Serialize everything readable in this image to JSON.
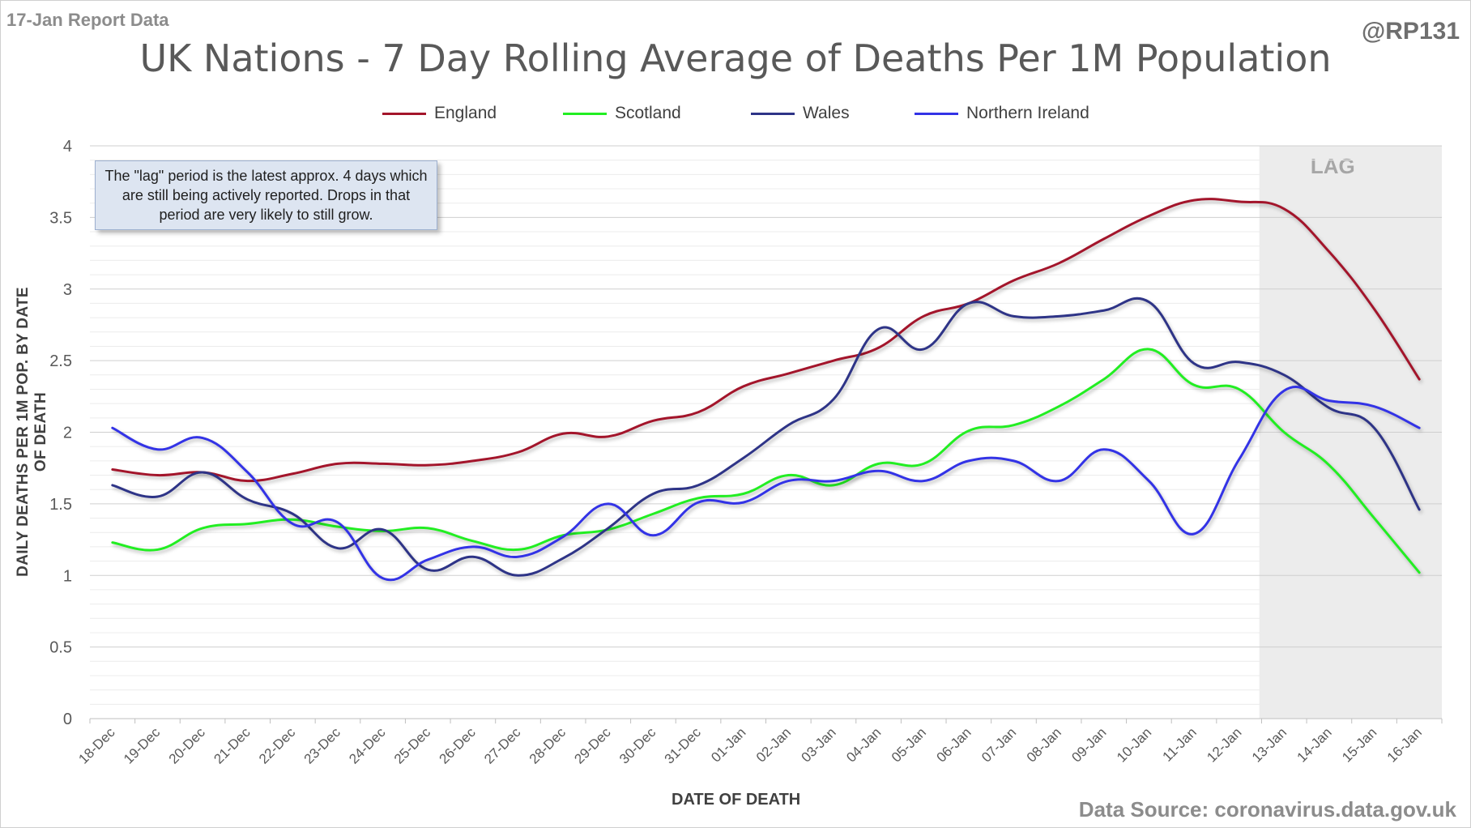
{
  "header": {
    "report_date": "17-Jan Report Data",
    "handle": "@RP131",
    "source": "Data Source: coronavirus.data.gov.uk"
  },
  "annotation": {
    "note": "The \"lag\" period is the latest approx. 4 days which are still being actively reported.  Drops in that period are very likely to still grow.",
    "lag_label": "LAG"
  },
  "chart_data": {
    "type": "line",
    "title": "UK Nations - 7 Day Rolling Average of Deaths Per 1M Population",
    "xlabel": "DATE OF DEATH",
    "ylabel": "DAILY DEATHS PER 1M POP. BY DATE OF DEATH",
    "ylim": [
      0,
      4
    ],
    "yticks": [
      0,
      0.5,
      1,
      1.5,
      2,
      2.5,
      3,
      3.5,
      4
    ],
    "grid": true,
    "legend_position": "top",
    "lag_region": [
      "13-Jan",
      "16-Jan"
    ],
    "categories": [
      "18-Dec",
      "19-Dec",
      "20-Dec",
      "21-Dec",
      "22-Dec",
      "23-Dec",
      "24-Dec",
      "25-Dec",
      "26-Dec",
      "27-Dec",
      "28-Dec",
      "29-Dec",
      "30-Dec",
      "31-Dec",
      "01-Jan",
      "02-Jan",
      "03-Jan",
      "04-Jan",
      "05-Jan",
      "06-Jan",
      "07-Jan",
      "08-Jan",
      "09-Jan",
      "10-Jan",
      "11-Jan",
      "12-Jan",
      "13-Jan",
      "14-Jan",
      "15-Jan",
      "16-Jan"
    ],
    "series": [
      {
        "name": "England",
        "color": "#a3152b",
        "values": [
          1.74,
          1.7,
          1.72,
          1.66,
          1.71,
          1.78,
          1.78,
          1.77,
          1.8,
          1.86,
          1.99,
          1.97,
          2.08,
          2.14,
          2.32,
          2.41,
          2.5,
          2.59,
          2.81,
          2.9,
          3.06,
          3.18,
          3.35,
          3.51,
          3.62,
          3.61,
          3.56,
          3.26,
          2.86,
          2.37
        ]
      },
      {
        "name": "Scotland",
        "color": "#22ee22",
        "values": [
          1.23,
          1.18,
          1.33,
          1.36,
          1.39,
          1.34,
          1.31,
          1.33,
          1.24,
          1.18,
          1.28,
          1.32,
          1.43,
          1.54,
          1.57,
          1.7,
          1.63,
          1.78,
          1.78,
          2.01,
          2.05,
          2.18,
          2.37,
          2.58,
          2.33,
          2.3,
          2.0,
          1.77,
          1.4,
          1.02
        ]
      },
      {
        "name": "Wales",
        "color": "#2e3487",
        "values": [
          1.63,
          1.55,
          1.72,
          1.53,
          1.43,
          1.19,
          1.32,
          1.04,
          1.13,
          1.0,
          1.12,
          1.33,
          1.57,
          1.63,
          1.82,
          2.05,
          2.23,
          2.72,
          2.58,
          2.9,
          2.81,
          2.81,
          2.85,
          2.91,
          2.48,
          2.49,
          2.4,
          2.17,
          2.03,
          1.46
        ]
      },
      {
        "name": "Northern Ireland",
        "color": "#3333e6",
        "values": [
          2.03,
          1.88,
          1.96,
          1.72,
          1.36,
          1.37,
          0.98,
          1.11,
          1.2,
          1.13,
          1.27,
          1.5,
          1.28,
          1.51,
          1.51,
          1.66,
          1.66,
          1.73,
          1.66,
          1.8,
          1.8,
          1.66,
          1.88,
          1.66,
          1.29,
          1.81,
          2.29,
          2.22,
          2.18,
          2.03
        ]
      }
    ]
  }
}
